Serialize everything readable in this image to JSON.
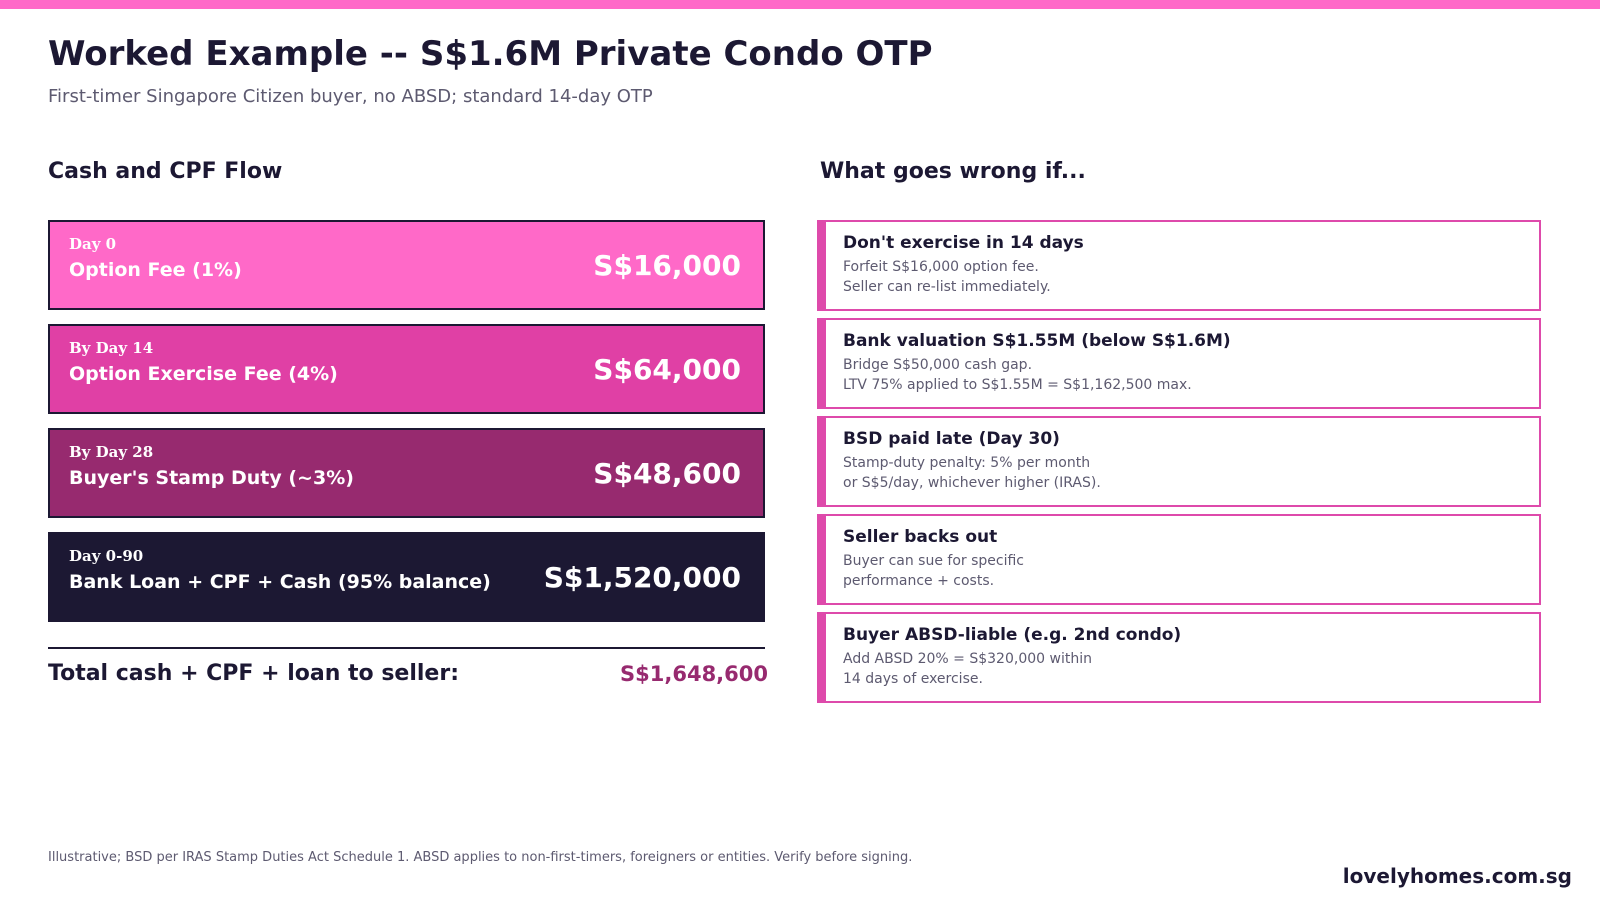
{
  "colors": {
    "accent": "#ff69c8",
    "card_pink": "#ff69c8",
    "card_magenta": "#e040a5",
    "card_plum": "#972a6f",
    "card_navy": "#1c1833",
    "risk_border": "#de4aab",
    "total_amount": "#972a6f"
  },
  "header": {
    "title": "Worked Example -- S$1.6M Private Condo OTP",
    "subtitle": "First-timer Singapore Citizen buyer, no ABSD; standard 14-day OTP"
  },
  "flow": {
    "heading": "Cash and CPF Flow",
    "items": [
      {
        "when": "Day 0",
        "label": "Option Fee (1%)",
        "amount": "S$16,000"
      },
      {
        "when": "By Day 14",
        "label": "Option Exercise Fee (4%)",
        "amount": "S$64,000"
      },
      {
        "when": "By Day 28",
        "label": "Buyer's Stamp Duty (~3%)",
        "amount": "S$48,600"
      },
      {
        "when": "Day 0-90",
        "label": "Bank Loan + CPF + Cash (95% balance)",
        "amount": "S$1,520,000"
      }
    ],
    "total_label": "Total cash + CPF + loan to seller:",
    "total_amount": "S$1,648,600"
  },
  "risks": {
    "heading": "What goes wrong if...",
    "items": [
      {
        "title": "Don't exercise in 14 days",
        "line1": "Forfeit S$16,000 option fee.",
        "line2": "Seller can re-list immediately."
      },
      {
        "title": "Bank valuation S$1.55M (below S$1.6M)",
        "line1": "Bridge S$50,000 cash gap.",
        "line2": "LTV 75% applied to S$1.55M = S$1,162,500 max."
      },
      {
        "title": "BSD paid late (Day 30)",
        "line1": "Stamp-duty penalty: 5% per month",
        "line2": "or S$5/day, whichever higher (IRAS)."
      },
      {
        "title": "Seller backs out",
        "line1": "Buyer can sue for specific",
        "line2": "performance + costs."
      },
      {
        "title": "Buyer ABSD-liable (e.g. 2nd condo)",
        "line1": "Add ABSD 20% = S$320,000 within",
        "line2": "14 days of exercise."
      }
    ]
  },
  "footer": {
    "note": "Illustrative; BSD per IRAS Stamp Duties Act Schedule 1. ABSD applies to non-first-timers, foreigners or entities. Verify before signing.",
    "brand": "lovelyhomes.com.sg"
  }
}
